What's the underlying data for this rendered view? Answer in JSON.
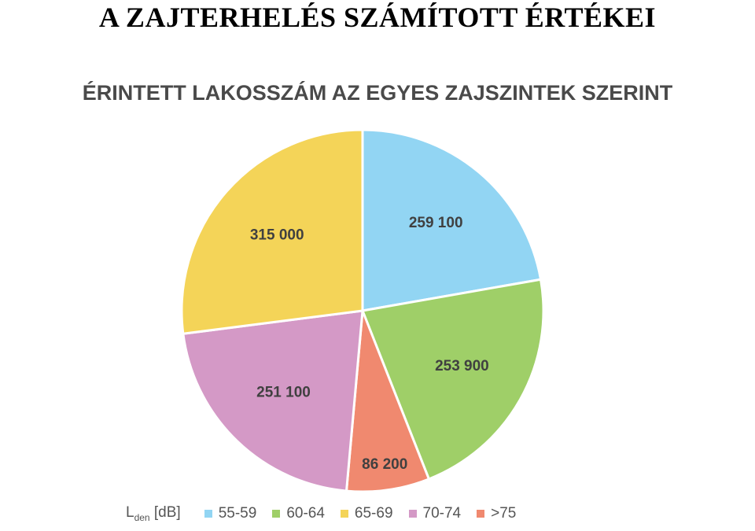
{
  "slide": {
    "title": "A ZAJTERHELÉS SZÁMÍTOTT ÉRTÉKEI"
  },
  "chart_data": {
    "type": "pie",
    "title": "ÉRINTETT LAKOSSZÁM AZ EGYES ZAJSZINTEK SZERINT",
    "legend_title_main": "L",
    "legend_title_sub": "den",
    "legend_title_unit": "[dB]",
    "legend_position": "bottom",
    "slices": [
      {
        "category": "55-59",
        "value": 259100,
        "label": "259 100",
        "color": "#92d5f3"
      },
      {
        "category": "60-64",
        "value": 253900,
        "label": "253 900",
        "color": "#9fcf68"
      },
      {
        "category": ">75",
        "value": 86200,
        "label": "86 200",
        "color": "#f0896f"
      },
      {
        "category": "70-74",
        "value": 251100,
        "label": "251 100",
        "color": "#d499c6"
      },
      {
        "category": "65-69",
        "value": 315000,
        "label": "315 000",
        "color": "#f4d458"
      }
    ],
    "legend_order": [
      "55-59",
      "60-64",
      "65-69",
      "70-74",
      ">75"
    ]
  }
}
